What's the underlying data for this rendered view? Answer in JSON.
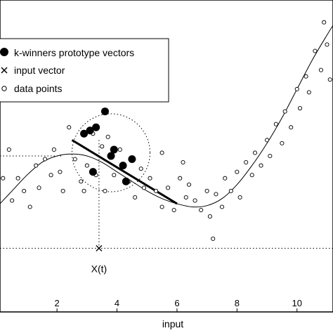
{
  "chart_data": {
    "type": "scatter",
    "title": "",
    "xlabel": "input",
    "ylabel": "",
    "xlim": [
      0.1,
      11.2
    ],
    "ylim": [
      -1.6,
      3.3
    ],
    "xticks": [
      2,
      4,
      6,
      8,
      10
    ],
    "xtick_labels": [
      "2",
      "4",
      "6",
      "8",
      "10"
    ],
    "grid": false,
    "legend": {
      "placement": "top-left",
      "entries": [
        {
          "marker": "filled-circle",
          "label": "k-winners prototype vectors"
        },
        {
          "marker": "x",
          "label": "input vector"
        },
        {
          "marker": "open-circle",
          "label": "data points"
        }
      ]
    },
    "annotation": {
      "label": "X(t)",
      "x": 3.4
    },
    "reference_lines": {
      "horizontal_y": [
        0.85,
        -0.6
      ],
      "vertical_x": 3.4
    },
    "curve": {
      "x": [
        0.1,
        0.5,
        1.0,
        1.5,
        2.0,
        2.5,
        3.0,
        3.5,
        4.0,
        4.5,
        5.0,
        5.5,
        6.0,
        6.5,
        7.0,
        7.5,
        8.0,
        8.5,
        9.0,
        9.5,
        10.0,
        10.5,
        11.0,
        11.2
      ],
      "y": [
        0.1,
        0.3,
        0.55,
        0.75,
        0.85,
        0.88,
        0.85,
        0.75,
        0.6,
        0.45,
        0.3,
        0.18,
        0.1,
        0.05,
        0.07,
        0.18,
        0.4,
        0.7,
        1.05,
        1.45,
        1.9,
        2.35,
        2.75,
        2.9
      ]
    },
    "regression_line": {
      "x": [
        2.5,
        6.0
      ],
      "y": [
        1.1,
        0.1
      ]
    },
    "neighborhood_circle": {
      "center": [
        3.8,
        0.9
      ],
      "radius_x": 1.3
    },
    "series": [
      {
        "name": "data points",
        "points": [
          [
            0.2,
            0.5
          ],
          [
            0.4,
            0.95
          ],
          [
            0.5,
            0.15
          ],
          [
            0.7,
            0.5
          ],
          [
            0.9,
            0.3
          ],
          [
            1.1,
            0.05
          ],
          [
            1.3,
            0.7
          ],
          [
            1.4,
            0.35
          ],
          [
            1.6,
            0.8
          ],
          [
            1.8,
            0.55
          ],
          [
            1.9,
            0.95
          ],
          [
            2.1,
            0.6
          ],
          [
            2.2,
            0.3
          ],
          [
            2.4,
            1.3
          ],
          [
            2.6,
            0.8
          ],
          [
            2.8,
            0.45
          ],
          [
            2.9,
            0.3
          ],
          [
            3.0,
            0.7
          ],
          [
            3.2,
            1.2
          ],
          [
            3.3,
            0.55
          ],
          [
            3.5,
            1.0
          ],
          [
            3.6,
            0.3
          ],
          [
            3.7,
            1.15
          ],
          [
            3.9,
            0.55
          ],
          [
            4.1,
            0.95
          ],
          [
            4.2,
            0.7
          ],
          [
            4.4,
            0.45
          ],
          [
            4.6,
            0.2
          ],
          [
            4.8,
            0.65
          ],
          [
            4.9,
            0.35
          ],
          [
            5.1,
            0.5
          ],
          [
            5.3,
            0.3
          ],
          [
            5.5,
            0.05
          ],
          [
            5.7,
            0.35
          ],
          [
            5.9,
            0.0
          ],
          [
            6.1,
            0.5
          ],
          [
            6.3,
            0.2
          ],
          [
            6.4,
            0.4
          ],
          [
            6.6,
            0.15
          ],
          [
            6.8,
            0.0
          ],
          [
            7.0,
            0.3
          ],
          [
            7.1,
            -0.1
          ],
          [
            7.3,
            0.25
          ],
          [
            7.5,
            0.05
          ],
          [
            7.6,
            0.5
          ],
          [
            7.8,
            0.3
          ],
          [
            8.0,
            0.6
          ],
          [
            8.1,
            0.2
          ],
          [
            8.3,
            0.75
          ],
          [
            8.5,
            0.55
          ],
          [
            8.6,
            0.9
          ],
          [
            8.8,
            0.7
          ],
          [
            9.0,
            1.1
          ],
          [
            9.1,
            0.85
          ],
          [
            9.3,
            1.35
          ],
          [
            9.5,
            1.05
          ],
          [
            9.6,
            1.55
          ],
          [
            9.8,
            1.3
          ],
          [
            10.0,
            1.9
          ],
          [
            10.1,
            1.6
          ],
          [
            10.3,
            2.1
          ],
          [
            10.4,
            1.85
          ],
          [
            10.6,
            2.5
          ],
          [
            10.8,
            2.2
          ],
          [
            10.9,
            2.95
          ],
          [
            11.0,
            2.6
          ],
          [
            11.1,
            2.05
          ],
          [
            5.5,
            0.9
          ],
          [
            6.2,
            0.75
          ],
          [
            7.2,
            -0.45
          ]
        ]
      },
      {
        "name": "k-winners prototype vectors",
        "points": [
          [
            2.9,
            1.2
          ],
          [
            3.1,
            1.25
          ],
          [
            3.3,
            1.3
          ],
          [
            3.6,
            1.55
          ],
          [
            3.9,
            0.95
          ],
          [
            3.8,
            0.85
          ],
          [
            4.2,
            0.7
          ],
          [
            4.5,
            0.8
          ],
          [
            3.2,
            0.6
          ],
          [
            4.3,
            0.45
          ]
        ]
      }
    ],
    "input_vector": [
      3.4,
      -0.6
    ]
  },
  "colors": {
    "ink": "#000000",
    "background": "#ffffff"
  }
}
